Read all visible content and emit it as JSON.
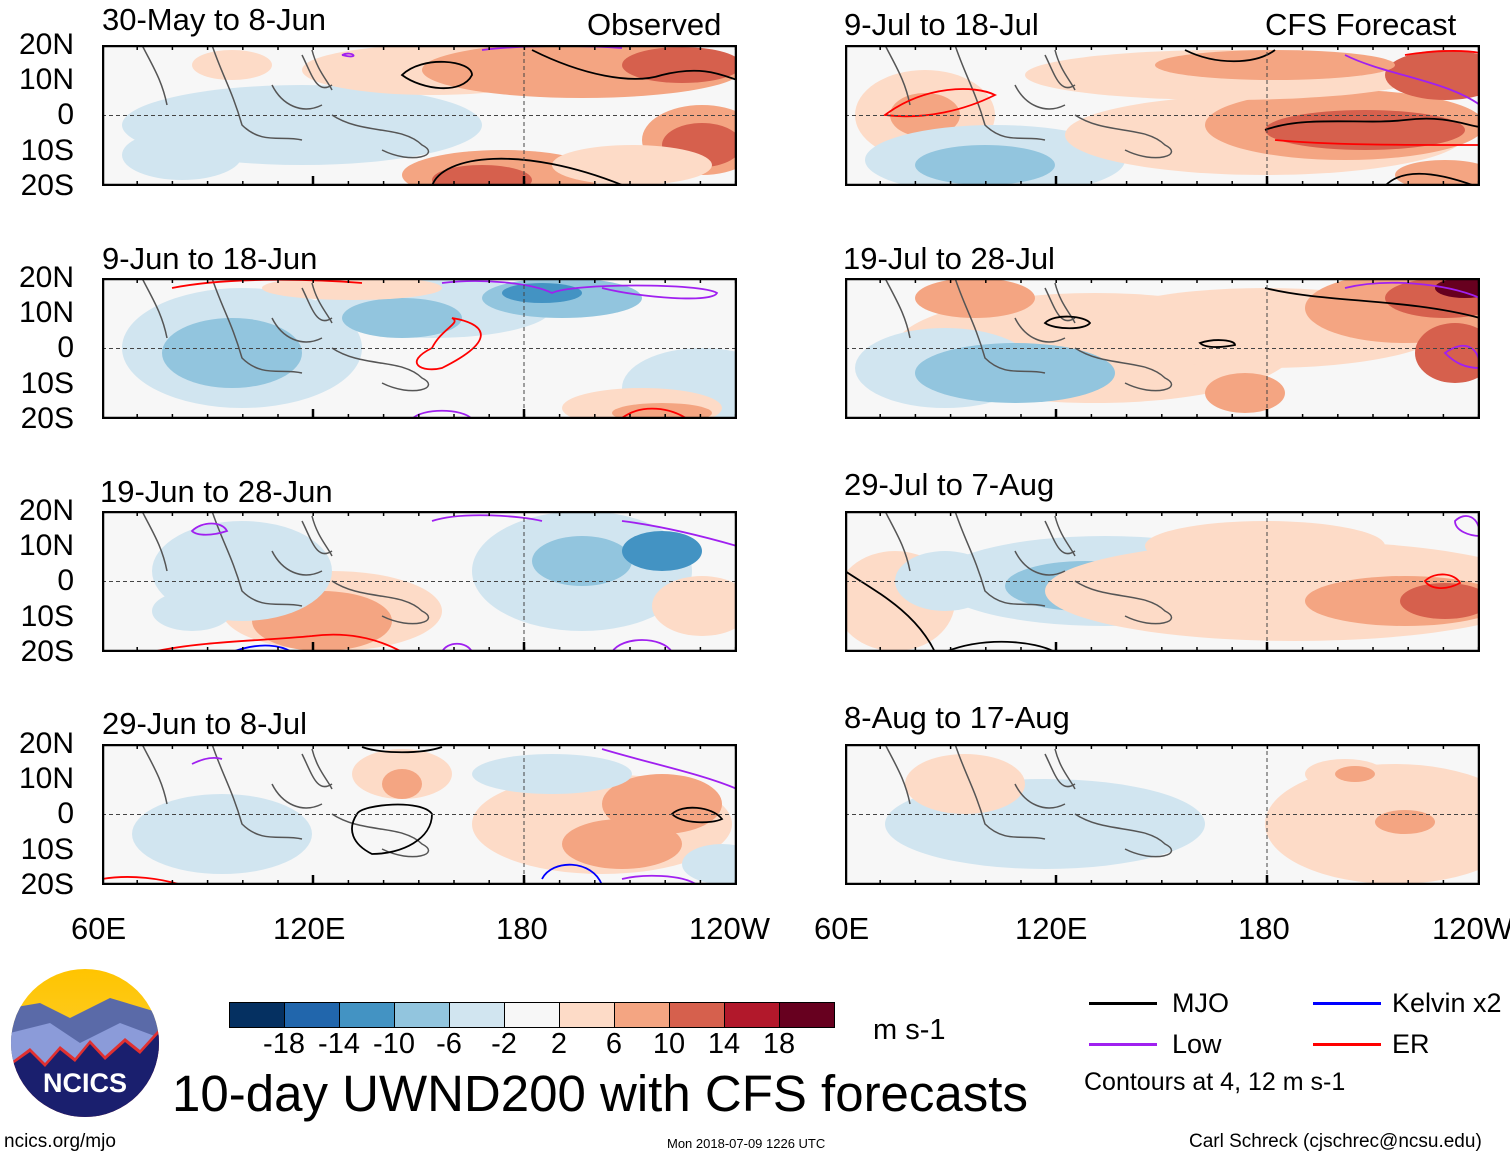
{
  "panels": [
    {
      "title": "30-May to 8-Jun",
      "label": "Observed"
    },
    {
      "title": "9-Jun to 18-Jun"
    },
    {
      "title": "19-Jun to 28-Jun"
    },
    {
      "title": "29-Jun to 8-Jul"
    },
    {
      "title": "9-Jul to 18-Jul",
      "label": "CFS Forecast"
    },
    {
      "title": "19-Jul to 28-Jul"
    },
    {
      "title": "29-Jul to 7-Aug"
    },
    {
      "title": "8-Aug to 17-Aug"
    }
  ],
  "lat_labels": [
    "20N",
    "10N",
    "0",
    "10S",
    "20S"
  ],
  "lon_labels": [
    "60E",
    "120E",
    "180",
    "120W"
  ],
  "colorbar": {
    "colors": [
      "#053061",
      "#2166ac",
      "#4393c3",
      "#92c5de",
      "#d1e5f0",
      "#f7f7f7",
      "#fddbc7",
      "#f4a582",
      "#d6604d",
      "#b2182b",
      "#67001f"
    ],
    "labels": [
      "-18",
      "-14",
      "-10",
      "-6",
      "-2",
      "2",
      "6",
      "10",
      "14",
      "18"
    ],
    "units": "m s-1"
  },
  "legend": {
    "items": [
      {
        "label": "MJO",
        "color": "#000000"
      },
      {
        "label": "Kelvin x2",
        "color": "#0000ff"
      },
      {
        "label": "Low",
        "color": "#a020f0"
      },
      {
        "label": "ER",
        "color": "#ff0000"
      }
    ],
    "note": "Contours at 4, 12 m s-1"
  },
  "logo": {
    "text": "NCICS"
  },
  "title": "10-day UWND200 with CFS forecasts",
  "footer": {
    "left": "ncics.org/mjo",
    "center": "Mon 2018-07-09 1226 UTC",
    "right": "Carl Schreck (cjschrec@ncsu.edu)"
  }
}
